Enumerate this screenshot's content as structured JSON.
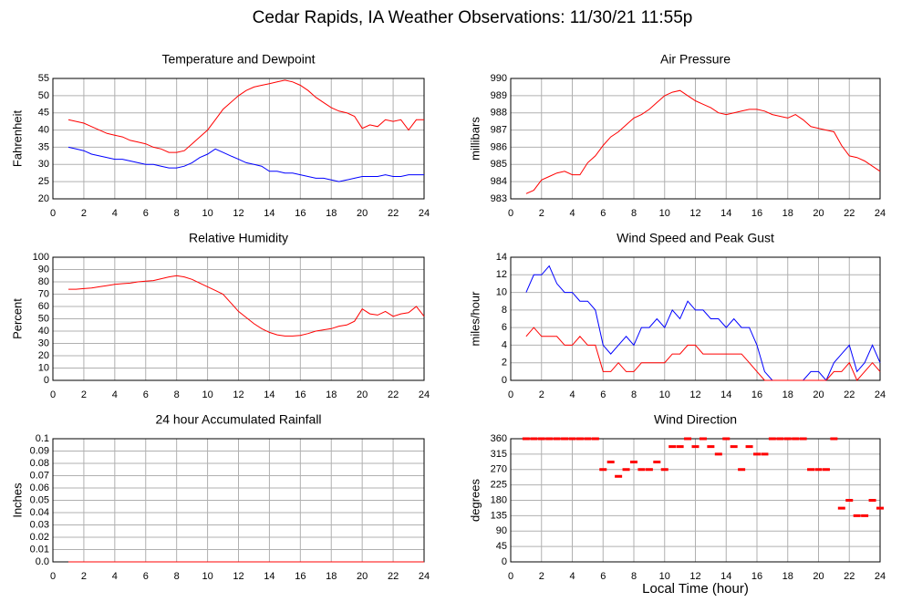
{
  "title": "Cedar Rapids, IA Weather Observations: 11/30/21 11:55p",
  "chart_data": [
    {
      "type": "line",
      "title": "Temperature and Dewpoint",
      "ylabel": "Fahrenheit",
      "x": [
        1,
        1.5,
        2,
        2.5,
        3,
        3.5,
        4,
        4.5,
        5,
        5.5,
        6,
        6.5,
        7,
        7.5,
        8,
        8.5,
        9,
        9.5,
        10,
        10.5,
        11,
        11.5,
        12,
        12.5,
        13,
        13.5,
        14,
        14.5,
        15,
        15.5,
        16,
        16.5,
        17,
        17.5,
        18,
        18.5,
        19,
        19.5,
        20,
        20.5,
        21,
        21.5,
        22,
        22.5,
        23,
        23.5,
        24
      ],
      "series": [
        {
          "color": "#ff0000",
          "values": [
            43,
            42.5,
            42,
            41,
            40,
            39,
            38.5,
            38,
            37,
            36.5,
            36,
            35,
            34.5,
            33.5,
            33.5,
            34,
            36,
            38,
            40,
            43,
            46,
            48,
            50,
            51.5,
            52.5,
            53,
            53.5,
            54,
            54.5,
            54,
            53,
            51.5,
            49.5,
            48,
            46.5,
            45.5,
            45,
            44,
            40.5,
            41.5,
            41,
            43,
            42.5,
            43,
            40,
            43,
            43
          ]
        },
        {
          "color": "#0000ff",
          "values": [
            35,
            34.5,
            34,
            33,
            32.5,
            32,
            31.5,
            31.5,
            31,
            30.5,
            30,
            30,
            29.5,
            29,
            29,
            29.5,
            30.5,
            32,
            33,
            34.5,
            33.5,
            32.5,
            31.5,
            30.5,
            30,
            29.5,
            28,
            28,
            27.5,
            27.5,
            27,
            26.5,
            26,
            26,
            25.5,
            25,
            25.5,
            26,
            26.5,
            26.5,
            26.5,
            27,
            26.5,
            26.5,
            27,
            27,
            27
          ]
        }
      ],
      "xlim": [
        0,
        24
      ],
      "xticks": [
        0,
        2,
        4,
        6,
        8,
        10,
        12,
        14,
        16,
        18,
        20,
        22,
        24
      ],
      "ylim": [
        20,
        55
      ],
      "yticks": [
        20,
        25,
        30,
        35,
        40,
        45,
        50,
        55
      ],
      "grid": true
    },
    {
      "type": "line",
      "title": "Air Pressure",
      "ylabel": "millibars",
      "x": [
        1,
        1.5,
        2,
        2.5,
        3,
        3.5,
        4,
        4.5,
        5,
        5.5,
        6,
        6.5,
        7,
        7.5,
        8,
        8.5,
        9,
        9.5,
        10,
        10.5,
        11,
        11.5,
        12,
        12.5,
        13,
        13.5,
        14,
        14.5,
        15,
        15.5,
        16,
        16.5,
        17,
        17.5,
        18,
        18.5,
        19,
        19.5,
        20,
        20.5,
        21,
        21.5,
        22,
        22.5,
        23,
        23.5,
        24
      ],
      "series": [
        {
          "color": "#ff0000",
          "values": [
            983.3,
            983.5,
            984.1,
            984.3,
            984.5,
            984.6,
            984.4,
            984.4,
            985.1,
            985.5,
            986.1,
            986.6,
            986.9,
            987.3,
            987.7,
            987.9,
            988.2,
            988.6,
            989.0,
            989.2,
            989.3,
            989.0,
            988.7,
            988.5,
            988.3,
            988.0,
            987.9,
            988.0,
            988.1,
            988.2,
            988.2,
            988.1,
            987.9,
            987.8,
            987.7,
            987.9,
            987.6,
            987.2,
            987.1,
            987.0,
            986.9,
            986.1,
            985.5,
            985.4,
            985.2,
            984.9,
            984.6
          ]
        }
      ],
      "xlim": [
        0,
        24
      ],
      "xticks": [
        0,
        2,
        4,
        6,
        8,
        10,
        12,
        14,
        16,
        18,
        20,
        22,
        24
      ],
      "ylim": [
        983,
        990
      ],
      "yticks": [
        983,
        984,
        985,
        986,
        987,
        988,
        989,
        990
      ],
      "grid": true
    },
    {
      "type": "line",
      "title": "Relative Humidity",
      "ylabel": "Percent",
      "x": [
        1,
        1.5,
        2,
        2.5,
        3,
        3.5,
        4,
        4.5,
        5,
        5.5,
        6,
        6.5,
        7,
        7.5,
        8,
        8.5,
        9,
        9.5,
        10,
        10.5,
        11,
        11.5,
        12,
        12.5,
        13,
        13.5,
        14,
        14.5,
        15,
        15.5,
        16,
        16.5,
        17,
        17.5,
        18,
        18.5,
        19,
        19.5,
        20,
        20.5,
        21,
        21.5,
        22,
        22.5,
        23,
        23.5,
        24
      ],
      "series": [
        {
          "color": "#ff0000",
          "values": [
            74,
            74,
            74.5,
            75,
            76,
            77,
            78,
            78.5,
            79,
            80,
            80.5,
            81,
            82.5,
            84,
            85,
            84,
            82,
            79,
            76,
            73,
            70,
            63,
            56,
            51,
            46,
            42,
            39,
            37,
            36,
            36,
            36.5,
            38,
            40,
            41,
            42,
            44,
            45,
            48,
            58,
            54,
            53,
            56,
            52,
            54,
            55,
            60,
            52
          ]
        }
      ],
      "xlim": [
        0,
        24
      ],
      "xticks": [
        0,
        2,
        4,
        6,
        8,
        10,
        12,
        14,
        16,
        18,
        20,
        22,
        24
      ],
      "ylim": [
        0,
        100
      ],
      "yticks": [
        0,
        10,
        20,
        30,
        40,
        50,
        60,
        70,
        80,
        90,
        100
      ],
      "grid": true
    },
    {
      "type": "line",
      "title": "Wind Speed and Peak Gust",
      "ylabel": "miles/hour",
      "x": [
        1,
        1.5,
        2,
        2.5,
        3,
        3.5,
        4,
        4.5,
        5,
        5.5,
        6,
        6.5,
        7,
        7.5,
        8,
        8.5,
        9,
        9.5,
        10,
        10.5,
        11,
        11.5,
        12,
        12.5,
        13,
        13.5,
        14,
        14.5,
        15,
        15.5,
        16,
        16.5,
        17,
        17.5,
        18,
        18.5,
        19,
        19.5,
        20,
        20.5,
        21,
        21.5,
        22,
        22.5,
        23,
        23.5,
        24
      ],
      "series": [
        {
          "color": "#0000ff",
          "values": [
            10,
            12,
            12,
            13,
            11,
            10,
            10,
            9,
            9,
            8,
            4,
            3,
            4,
            5,
            4,
            6,
            6,
            7,
            6,
            8,
            7,
            9,
            8,
            8,
            7,
            7,
            6,
            7,
            6,
            6,
            4,
            1,
            0,
            0,
            0,
            0,
            0,
            1,
            1,
            0,
            2,
            3,
            4,
            1,
            2,
            4,
            2
          ]
        },
        {
          "color": "#ff0000",
          "values": [
            5,
            6,
            5,
            5,
            5,
            4,
            4,
            5,
            4,
            4,
            1,
            1,
            2,
            1,
            1,
            2,
            2,
            2,
            2,
            3,
            3,
            4,
            4,
            3,
            3,
            3,
            3,
            3,
            3,
            2,
            1,
            0,
            0,
            0,
            0,
            0,
            0,
            0,
            0,
            0,
            1,
            1,
            2,
            0,
            1,
            2,
            1
          ]
        }
      ],
      "xlim": [
        0,
        24
      ],
      "xticks": [
        0,
        2,
        4,
        6,
        8,
        10,
        12,
        14,
        16,
        18,
        20,
        22,
        24
      ],
      "ylim": [
        0,
        14
      ],
      "yticks": [
        0,
        2,
        4,
        6,
        8,
        10,
        12,
        14
      ],
      "grid": true
    },
    {
      "type": "line",
      "title": "24 hour Accumulated Rainfall",
      "ylabel": "Inches",
      "x": [
        1,
        24
      ],
      "series": [
        {
          "color": "#ff0000",
          "values": [
            0,
            0
          ]
        }
      ],
      "xlim": [
        0,
        24
      ],
      "xticks": [
        0,
        2,
        4,
        6,
        8,
        10,
        12,
        14,
        16,
        18,
        20,
        22,
        24
      ],
      "ylim": [
        0,
        0.1
      ],
      "yticks": [
        {
          "value": 0,
          "label": "0.0"
        },
        0.01,
        0.02,
        0.03,
        0.04,
        0.05,
        0.06,
        0.07,
        0.08,
        0.09,
        0.1
      ],
      "grid": true
    },
    {
      "type": "scatter",
      "title": "Wind Direction",
      "ylabel": "degrees",
      "xlabel": "Local Time (hour)",
      "x": [
        1,
        1.5,
        2,
        2.5,
        3,
        3.5,
        4,
        4.5,
        5,
        5.5,
        6,
        6.5,
        7,
        7.5,
        8,
        8.5,
        9,
        9.5,
        10,
        10.5,
        11,
        11.5,
        12,
        12.5,
        13,
        13.5,
        14,
        14.5,
        15,
        15.5,
        16,
        16.5,
        17,
        17.5,
        18,
        18.5,
        19,
        19.5,
        20,
        20.5,
        21,
        21.5,
        22,
        22.5,
        23,
        23.5,
        24
      ],
      "series": [
        {
          "color": "#ff0000",
          "values": [
            360,
            360,
            360,
            360,
            360,
            360,
            360,
            360,
            360,
            360,
            270,
            292,
            250,
            270,
            292,
            270,
            270,
            292,
            270,
            337,
            337,
            360,
            337,
            360,
            337,
            315,
            360,
            337,
            270,
            337,
            315,
            315,
            360,
            360,
            360,
            360,
            360,
            270,
            270,
            270,
            360,
            157,
            180,
            135,
            135,
            180,
            157
          ]
        }
      ],
      "xlim": [
        0,
        24
      ],
      "xticks": [
        0,
        2,
        4,
        6,
        8,
        10,
        12,
        14,
        16,
        18,
        20,
        22,
        24
      ],
      "ylim": [
        0,
        360
      ],
      "yticks": [
        0,
        45,
        90,
        135,
        180,
        225,
        270,
        315,
        360
      ],
      "grid": true
    }
  ]
}
